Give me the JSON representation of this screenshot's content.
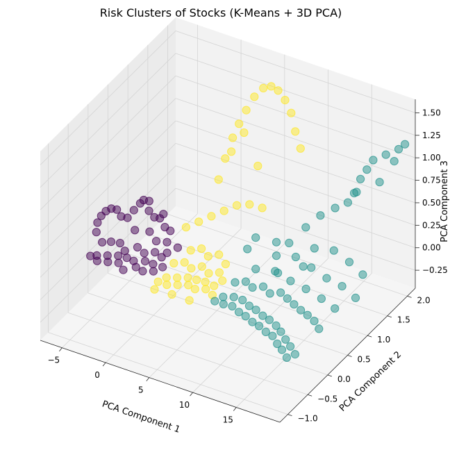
{
  "chart_data": {
    "type": "scatter",
    "projection": "3d",
    "title": "Risk Clusters of Stocks (K-Means + 3D PCA)",
    "xlabel": "PCA Component 1",
    "ylabel": "PCA Component 2",
    "zlabel": "PCA Component 3",
    "xlim": [
      -7.5,
      20
    ],
    "ylim": [
      -1.2,
      2.2
    ],
    "zlim": [
      -0.45,
      1.65
    ],
    "xticks": [
      "−5",
      "0",
      "5",
      "10",
      "15"
    ],
    "yticks": [
      "−1.0",
      "−0.5",
      "0.0",
      "0.5",
      "1.0",
      "1.5",
      "2.0"
    ],
    "zticks": [
      "−0.25",
      "0.00",
      "0.25",
      "0.50",
      "0.75",
      "1.00",
      "1.25",
      "1.50"
    ],
    "grid": true,
    "legend": "none",
    "colormap": "viridis",
    "marker_alpha": 0.5,
    "series": [
      {
        "color": "#440154",
        "points": [
          [
            -7.0,
            -0.05,
            0.0
          ],
          [
            -6.5,
            0.0,
            0.0
          ],
          [
            -6.0,
            -0.1,
            0.0
          ],
          [
            -5.5,
            0.05,
            0.01
          ],
          [
            -5.0,
            -0.05,
            0.0
          ],
          [
            -4.5,
            0.1,
            0.02
          ],
          [
            -4.0,
            0.0,
            0.0
          ],
          [
            -3.5,
            0.1,
            0.03
          ],
          [
            -3.0,
            -0.1,
            0.0
          ],
          [
            -2.5,
            0.05,
            0.05
          ],
          [
            -2.0,
            0.0,
            0.02
          ],
          [
            -1.5,
            0.12,
            0.05
          ],
          [
            -1.0,
            -0.05,
            0.03
          ],
          [
            -0.5,
            0.1,
            0.06
          ],
          [
            0.0,
            0.0,
            0.04
          ],
          [
            0.5,
            0.12,
            0.05
          ],
          [
            -6.8,
            0.2,
            0.05
          ],
          [
            -6.0,
            0.25,
            0.06
          ],
          [
            -5.2,
            0.3,
            0.05
          ],
          [
            -4.2,
            0.2,
            0.04
          ],
          [
            -3.2,
            0.3,
            0.07
          ],
          [
            -2.2,
            0.25,
            0.06
          ],
          [
            -1.2,
            0.3,
            0.08
          ],
          [
            -0.2,
            0.25,
            0.08
          ],
          [
            -7.0,
            0.1,
            0.2
          ],
          [
            -7.1,
            0.15,
            0.28
          ],
          [
            -6.9,
            0.2,
            0.34
          ],
          [
            -6.6,
            0.25,
            0.38
          ],
          [
            -6.2,
            0.3,
            0.4
          ],
          [
            -5.8,
            0.35,
            0.38
          ],
          [
            -5.3,
            0.35,
            0.32
          ],
          [
            -4.8,
            0.4,
            0.3
          ],
          [
            -4.3,
            0.45,
            0.38
          ],
          [
            -3.8,
            0.5,
            0.45
          ],
          [
            -3.4,
            0.5,
            0.5
          ],
          [
            -3.0,
            0.55,
            0.48
          ],
          [
            -2.8,
            0.5,
            0.4
          ],
          [
            -2.4,
            0.55,
            0.32
          ],
          [
            -2.0,
            0.6,
            0.3
          ],
          [
            -1.6,
            0.6,
            0.36
          ],
          [
            -1.2,
            0.55,
            0.25
          ],
          [
            -0.8,
            0.6,
            0.2
          ],
          [
            -3.5,
            0.3,
            0.25
          ],
          [
            -2.5,
            0.45,
            0.2
          ],
          [
            -1.5,
            0.4,
            0.15
          ],
          [
            -0.5,
            0.45,
            0.15
          ],
          [
            0.2,
            0.3,
            0.12
          ],
          [
            0.5,
            0.5,
            0.1
          ]
        ]
      },
      {
        "color": "#fde725",
        "points": [
          [
            1.0,
            -0.1,
            0.0
          ],
          [
            1.5,
            0.0,
            0.02
          ],
          [
            2.0,
            -0.1,
            0.0
          ],
          [
            2.5,
            0.05,
            0.03
          ],
          [
            3.0,
            -0.05,
            0.01
          ],
          [
            3.5,
            0.1,
            0.04
          ],
          [
            4.0,
            0.0,
            0.02
          ],
          [
            4.5,
            0.1,
            0.05
          ],
          [
            5.0,
            -0.05,
            0.03
          ],
          [
            5.5,
            0.1,
            0.06
          ],
          [
            6.0,
            0.0,
            0.04
          ],
          [
            6.5,
            0.1,
            0.05
          ],
          [
            7.0,
            -0.05,
            0.03
          ],
          [
            1.2,
            0.25,
            0.06
          ],
          [
            2.2,
            0.3,
            0.08
          ],
          [
            3.2,
            0.25,
            0.07
          ],
          [
            4.2,
            0.3,
            0.1
          ],
          [
            5.2,
            0.25,
            0.08
          ],
          [
            6.2,
            0.3,
            0.1
          ],
          [
            7.0,
            0.2,
            0.08
          ],
          [
            2.0,
            0.5,
            0.12
          ],
          [
            3.0,
            0.55,
            0.15
          ],
          [
            4.0,
            0.5,
            0.12
          ],
          [
            5.0,
            0.55,
            0.15
          ],
          [
            6.0,
            0.5,
            0.1
          ],
          [
            1.5,
            -0.3,
            0.02
          ],
          [
            3.5,
            -0.3,
            0.03
          ],
          [
            5.5,
            -0.3,
            0.03
          ],
          [
            1.0,
            0.6,
            0.3
          ],
          [
            2.0,
            0.7,
            0.35
          ],
          [
            3.0,
            0.8,
            0.4
          ],
          [
            4.0,
            0.9,
            0.45
          ],
          [
            5.0,
            1.0,
            0.5
          ],
          [
            6.0,
            1.1,
            0.5
          ],
          [
            7.0,
            1.2,
            0.45
          ],
          [
            2.0,
            1.2,
            0.6
          ],
          [
            2.3,
            1.3,
            0.8
          ],
          [
            2.7,
            1.4,
            1.0
          ],
          [
            3.2,
            1.45,
            1.15
          ],
          [
            3.8,
            1.5,
            1.3
          ],
          [
            4.5,
            1.55,
            1.45
          ],
          [
            5.3,
            1.6,
            1.55
          ],
          [
            6.2,
            1.6,
            1.6
          ],
          [
            7.0,
            1.6,
            1.58
          ],
          [
            7.8,
            1.6,
            1.5
          ],
          [
            8.5,
            1.6,
            1.38
          ],
          [
            9.2,
            1.55,
            1.22
          ],
          [
            9.8,
            1.55,
            1.05
          ],
          [
            3.0,
            1.3,
            0.9
          ],
          [
            4.0,
            1.4,
            1.1
          ],
          [
            6.5,
            1.2,
            0.9
          ]
        ]
      },
      {
        "color": "#21918c",
        "points": [
          [
            7.5,
            -0.1,
            0.0
          ],
          [
            8.0,
            0.0,
            0.02
          ],
          [
            8.5,
            -0.1,
            0.0
          ],
          [
            9.0,
            0.05,
            0.03
          ],
          [
            9.5,
            -0.1,
            0.01
          ],
          [
            10.0,
            0.05,
            0.03
          ],
          [
            10.5,
            -0.15,
            0.0
          ],
          [
            11.0,
            0.0,
            0.02
          ],
          [
            11.5,
            -0.2,
            0.01
          ],
          [
            12.0,
            -0.05,
            0.03
          ],
          [
            12.5,
            -0.25,
            0.0
          ],
          [
            13.0,
            -0.1,
            0.02
          ],
          [
            13.5,
            -0.3,
            0.01
          ],
          [
            14.0,
            -0.15,
            0.03
          ],
          [
            14.5,
            -0.35,
            0.0
          ],
          [
            15.0,
            -0.2,
            0.02
          ],
          [
            15.5,
            -0.4,
            0.01
          ],
          [
            16.0,
            -0.3,
            0.03
          ],
          [
            16.5,
            -0.5,
            0.0
          ],
          [
            17.0,
            -0.4,
            0.02
          ],
          [
            17.5,
            -0.6,
            0.01
          ],
          [
            18.0,
            -0.5,
            0.02
          ],
          [
            18.5,
            -0.7,
            0.0
          ],
          [
            19.0,
            -0.6,
            0.01
          ],
          [
            8.0,
            0.3,
            0.05
          ],
          [
            9.0,
            0.35,
            0.07
          ],
          [
            10.0,
            0.3,
            0.06
          ],
          [
            11.0,
            0.35,
            0.08
          ],
          [
            12.0,
            0.3,
            0.06
          ],
          [
            13.0,
            0.35,
            0.08
          ],
          [
            14.0,
            0.3,
            0.07
          ],
          [
            15.0,
            0.25,
            0.06
          ],
          [
            16.0,
            0.2,
            0.05
          ],
          [
            17.0,
            0.15,
            0.05
          ],
          [
            18.0,
            0.1,
            0.04
          ],
          [
            19.0,
            0.0,
            0.03
          ],
          [
            9.0,
            0.6,
            0.1
          ],
          [
            11.0,
            0.65,
            0.12
          ],
          [
            13.0,
            0.6,
            0.1
          ],
          [
            15.0,
            0.55,
            0.1
          ],
          [
            17.0,
            0.5,
            0.08
          ],
          [
            19.0,
            0.4,
            0.08
          ],
          [
            10.0,
            0.9,
            0.15
          ],
          [
            12.0,
            0.95,
            0.18
          ],
          [
            14.0,
            0.9,
            0.15
          ],
          [
            16.0,
            0.85,
            0.12
          ],
          [
            18.0,
            0.8,
            0.12
          ],
          [
            20.0,
            0.7,
            0.1
          ],
          [
            13.0,
            1.2,
            0.2
          ],
          [
            15.0,
            1.25,
            0.22
          ],
          [
            17.0,
            1.2,
            0.18
          ],
          [
            19.0,
            1.1,
            0.15
          ],
          [
            8.5,
            0.5,
            0.35
          ],
          [
            9.0,
            0.6,
            0.45
          ],
          [
            10.0,
            0.9,
            0.3
          ],
          [
            11.0,
            1.0,
            0.28
          ],
          [
            12.0,
            1.2,
            0.4
          ],
          [
            13.0,
            1.35,
            0.5
          ],
          [
            14.0,
            1.5,
            0.55
          ],
          [
            15.0,
            1.6,
            0.6
          ],
          [
            15.5,
            1.65,
            0.7
          ],
          [
            16.0,
            1.7,
            0.85
          ],
          [
            16.5,
            1.75,
            0.95
          ],
          [
            17.0,
            1.8,
            1.05
          ],
          [
            16.0,
            1.6,
            0.75
          ],
          [
            18.0,
            1.9,
            1.1
          ],
          [
            19.0,
            2.0,
            1.15
          ],
          [
            19.5,
            2.05,
            1.2
          ],
          [
            18.5,
            2.0,
            1.0
          ],
          [
            17.5,
            1.85,
            0.8
          ],
          [
            12.0,
            0.5,
            0.2
          ],
          [
            14.0,
            0.7,
            0.25
          ]
        ]
      }
    ]
  }
}
